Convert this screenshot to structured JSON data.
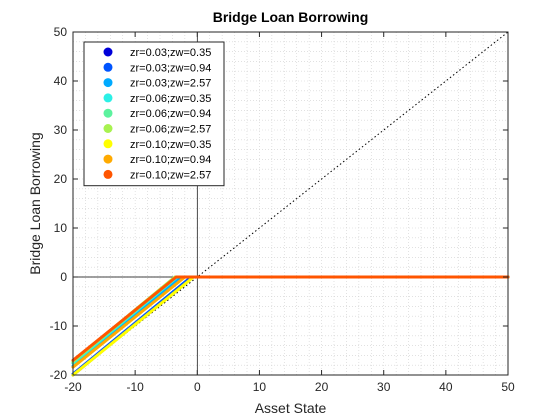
{
  "chart_data": {
    "type": "line",
    "title": "Bridge Loan Borrowing",
    "xlabel": "Asset State",
    "ylabel": "Bridge Loan Borrowing",
    "xlim": [
      -20,
      50
    ],
    "ylim": [
      -20,
      50
    ],
    "xticks": [
      -20,
      -10,
      0,
      10,
      20,
      30,
      40,
      50
    ],
    "yticks": [
      -20,
      -10,
      0,
      10,
      20,
      30,
      40,
      50
    ],
    "grid": "minor-dotted",
    "legend_position": "top-left",
    "reference_lines": [
      {
        "kind": "45-degree",
        "style": "dotted",
        "color": "#000000"
      },
      {
        "kind": "x=0",
        "style": "solid",
        "color": "#000000"
      },
      {
        "kind": "y=0",
        "style": "solid",
        "color": "#000000"
      }
    ],
    "series": [
      {
        "name": "zr=0.03;zw=0.35",
        "color": "#0000d9",
        "x": [
          -20,
          -0.8,
          50
        ],
        "y": [
          -20.0,
          0,
          0
        ]
      },
      {
        "name": "zr=0.03;zw=0.94",
        "color": "#0054ff",
        "x": [
          -20,
          -1.0,
          50
        ],
        "y": [
          -19.8,
          0,
          0
        ]
      },
      {
        "name": "zr=0.03;zw=2.57",
        "color": "#00aaff",
        "x": [
          -20,
          -2.6,
          50
        ],
        "y": [
          -18.2,
          0,
          0
        ]
      },
      {
        "name": "zr=0.06;zw=0.35",
        "color": "#2bf0e6",
        "x": [
          -20,
          -3.2,
          50
        ],
        "y": [
          -17.6,
          0,
          0
        ]
      },
      {
        "name": "zr=0.06;zw=0.94",
        "color": "#5cf29e",
        "x": [
          -20,
          -3.4,
          50
        ],
        "y": [
          -17.4,
          0,
          0
        ]
      },
      {
        "name": "zr=0.06;zw=2.57",
        "color": "#a8f250",
        "x": [
          -20,
          -3.6,
          50
        ],
        "y": [
          -17.2,
          0,
          0
        ]
      },
      {
        "name": "zr=0.10;zw=0.35",
        "color": "#ffff00",
        "x": [
          -20,
          -0.6,
          50
        ],
        "y": [
          -20.0,
          0,
          0
        ]
      },
      {
        "name": "zr=0.10;zw=0.94",
        "color": "#ffaa00",
        "x": [
          -20,
          -2.0,
          50
        ],
        "y": [
          -18.4,
          0,
          0
        ]
      },
      {
        "name": "zr=0.10;zw=2.57",
        "color": "#ff5500",
        "x": [
          -20,
          -3.4,
          50
        ],
        "y": [
          -17.0,
          0,
          0
        ]
      }
    ]
  }
}
